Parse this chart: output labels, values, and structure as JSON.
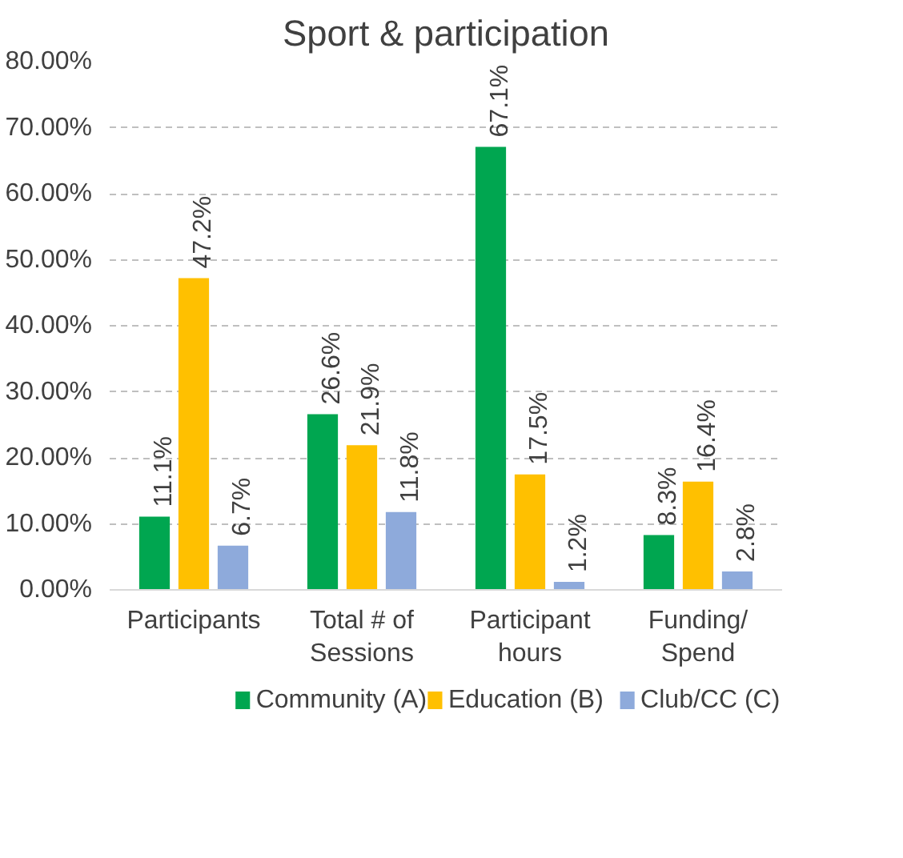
{
  "chart_data": {
    "type": "bar",
    "title": "Sport & participation",
    "categories": [
      "Participants",
      "Total # of Sessions",
      "Participant hours",
      "Funding/ Spend"
    ],
    "series": [
      {
        "name": "Community (A)",
        "color": "#00a650",
        "values": [
          11.1,
          26.6,
          67.1,
          8.3
        ],
        "value_labels": [
          "11.1%",
          "26.6%",
          "67.1%",
          "8.3%"
        ]
      },
      {
        "name": "Education (B)",
        "color": "#ffc000",
        "values": [
          47.2,
          21.9,
          17.5,
          16.4
        ],
        "value_labels": [
          "47.2%",
          "21.9%",
          "17.5%",
          "16.4%"
        ]
      },
      {
        "name": "Club/CC (C)",
        "color": "#8eaadb",
        "values": [
          6.7,
          11.8,
          1.2,
          2.8
        ],
        "value_labels": [
          "6.7%",
          "11.8%",
          "1.2%",
          "2.8%"
        ]
      }
    ],
    "ylim": [
      0,
      80
    ],
    "yticks": [
      {
        "value": 0,
        "label": "0.00%"
      },
      {
        "value": 10,
        "label": "10.00%"
      },
      {
        "value": 20,
        "label": "20.00%"
      },
      {
        "value": 30,
        "label": "30.00%"
      },
      {
        "value": 40,
        "label": "40.00%"
      },
      {
        "value": 50,
        "label": "50.00%"
      },
      {
        "value": 60,
        "label": "60.00%"
      },
      {
        "value": 70,
        "label": "70.00%"
      },
      {
        "value": 80,
        "label": "80.00%"
      }
    ],
    "grid": "y",
    "legend": "bottom"
  }
}
